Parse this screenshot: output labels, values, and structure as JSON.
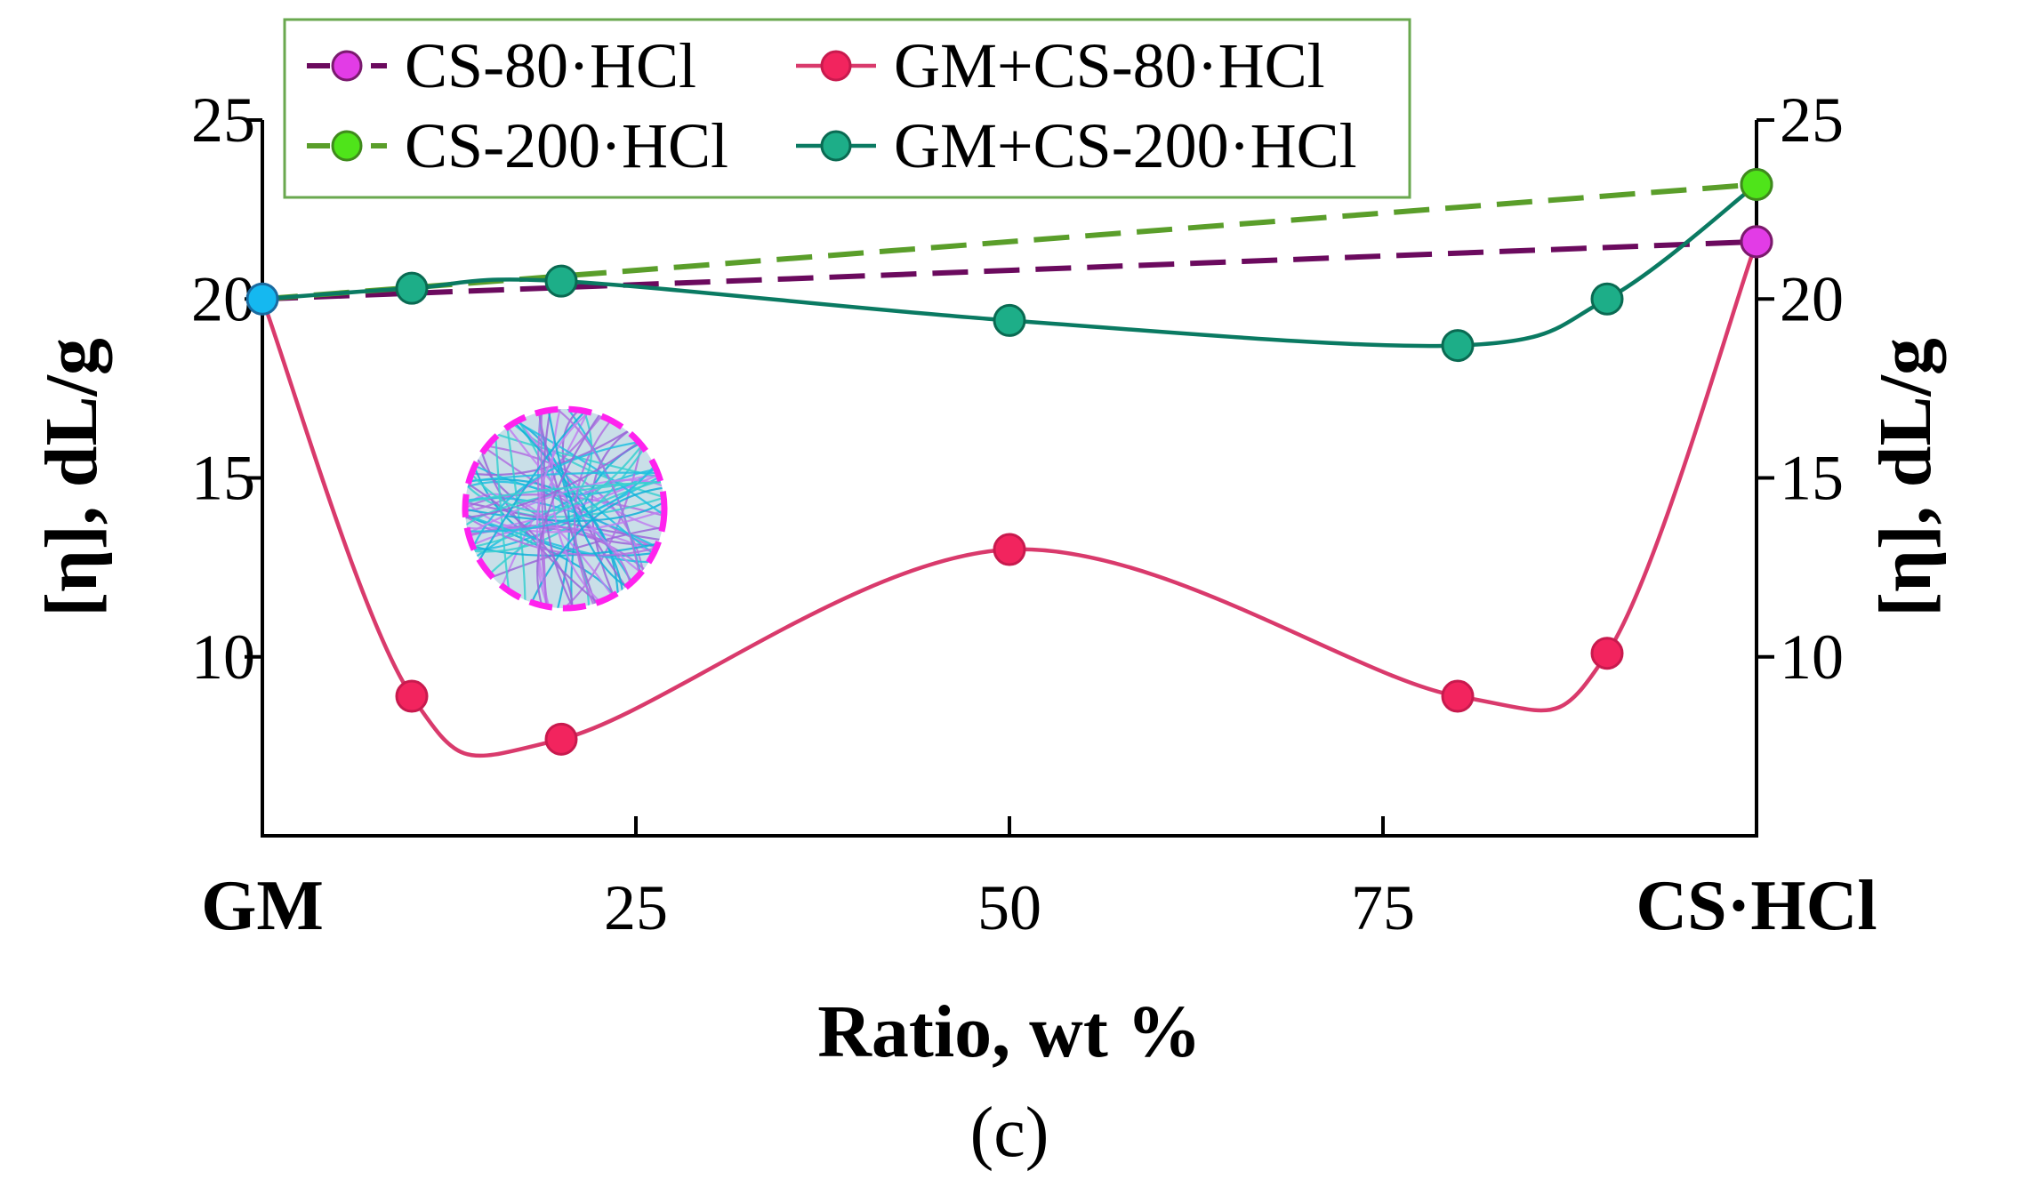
{
  "chart_data": {
    "type": "line",
    "caption": "(c)",
    "xlabel": "Ratio, wt %",
    "ylabel_left": "[η], dL/g",
    "ylabel_right": "[η], dL/g",
    "xlim": [
      0,
      100
    ],
    "ylim": [
      5,
      25
    ],
    "x_ticks": [
      {
        "value": 0,
        "label": "GM",
        "bold": true
      },
      {
        "value": 25,
        "label": "25",
        "bold": false
      },
      {
        "value": 50,
        "label": "50",
        "bold": false
      },
      {
        "value": 75,
        "label": "75",
        "bold": false
      },
      {
        "value": 100,
        "label": "CS·HCl",
        "bold": true
      }
    ],
    "y_ticks_left": [
      10,
      15,
      20,
      25
    ],
    "y_ticks_right": [
      10,
      15,
      20,
      25
    ],
    "legend_position": "top-left",
    "series": [
      {
        "name": "CS-80·HCl",
        "style": "dashed-straight",
        "line_color": "#6b0a5e",
        "marker_color": "#e23ce6",
        "marker_stroke": "#7a1a6e",
        "marker_x": [
          100
        ],
        "x": [
          0,
          100
        ],
        "y": [
          20.0,
          21.6
        ]
      },
      {
        "name": "CS-200·HCl",
        "style": "dashed-straight",
        "line_color": "#5a9e2a",
        "marker_color": "#4fe41a",
        "marker_stroke": "#3f8a1c",
        "marker_x": [
          100
        ],
        "x": [
          0,
          100
        ],
        "y": [
          20.0,
          23.2
        ]
      },
      {
        "name": "GM+CS-80·HCl",
        "style": "smooth",
        "line_color": "#d93a6c",
        "marker_color": "#f2245e",
        "marker_stroke": "#c81a4e",
        "x": [
          10,
          20,
          50,
          80,
          90,
          100
        ],
        "y": [
          8.9,
          7.7,
          13.0,
          8.9,
          10.1,
          21.6
        ]
      },
      {
        "name": "GM+CS-200·HCl",
        "style": "smooth",
        "line_color": "#0a7a62",
        "marker_color": "#1dae88",
        "marker_stroke": "#0a6a52",
        "x": [
          10,
          20,
          50,
          80,
          90,
          100
        ],
        "y": [
          20.3,
          20.5,
          19.4,
          18.7,
          20.0,
          23.2
        ]
      }
    ],
    "start_point": {
      "x": 0,
      "y": 20.0,
      "marker_color": "#15b8f0",
      "marker_stroke": "#1a6aa0"
    }
  }
}
